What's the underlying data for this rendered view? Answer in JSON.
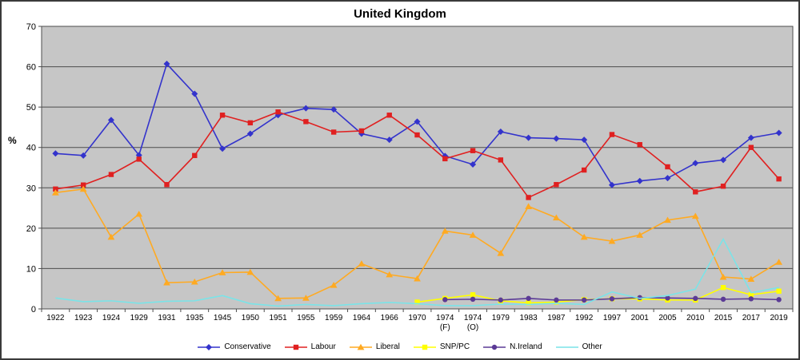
{
  "chart_data": {
    "type": "line",
    "title": "United Kingdom",
    "ylabel": "%",
    "ylim": [
      0,
      70
    ],
    "yticks": [
      0,
      10,
      20,
      30,
      40,
      50,
      60,
      70
    ],
    "grid": true,
    "legend_position": "bottom",
    "plot_bg": "#C6C6C6",
    "grid_color": "#4D4D4D",
    "categories": [
      "1922",
      "1923",
      "1924",
      "1929",
      "1931",
      "1935",
      "1945",
      "1950",
      "1951",
      "1955",
      "1959",
      "1964",
      "1966",
      "1970",
      "1974 (F)",
      "1974 (O)",
      "1979",
      "1983",
      "1987",
      "1992",
      "1997",
      "2001",
      "2005",
      "2010",
      "2015",
      "2017",
      "2019"
    ],
    "series": [
      {
        "name": "Conservative",
        "color": "#3333CC",
        "marker": "diamond",
        "values": [
          38.5,
          38.0,
          46.8,
          38.1,
          60.7,
          53.3,
          39.7,
          43.4,
          48.0,
          49.7,
          49.4,
          43.4,
          41.9,
          46.4,
          37.9,
          35.8,
          43.9,
          42.4,
          42.2,
          41.9,
          30.7,
          31.7,
          32.4,
          36.1,
          36.9,
          42.4,
          43.6
        ]
      },
      {
        "name": "Labour",
        "color": "#E02020",
        "marker": "square",
        "values": [
          29.7,
          30.7,
          33.3,
          37.1,
          30.8,
          38.0,
          48.0,
          46.1,
          48.8,
          46.4,
          43.8,
          44.1,
          48.0,
          43.1,
          37.2,
          39.2,
          36.9,
          27.6,
          30.8,
          34.4,
          43.2,
          40.7,
          35.2,
          29.0,
          30.4,
          40.0,
          32.2
        ]
      },
      {
        "name": "Liberal",
        "color": "#FFAA22",
        "marker": "triangle",
        "values": [
          28.8,
          29.7,
          17.8,
          23.5,
          6.5,
          6.7,
          9.0,
          9.1,
          2.6,
          2.7,
          5.9,
          11.2,
          8.5,
          7.5,
          19.3,
          18.3,
          13.8,
          25.4,
          22.6,
          17.8,
          16.8,
          18.3,
          22.0,
          23.0,
          7.9,
          7.4,
          11.6
        ]
      },
      {
        "name": "SNP/PC",
        "color": "#FFFF00",
        "marker": "square",
        "values": [
          null,
          null,
          null,
          null,
          null,
          null,
          null,
          null,
          null,
          null,
          null,
          null,
          null,
          1.7,
          2.6,
          3.5,
          2.0,
          1.5,
          1.7,
          2.3,
          2.5,
          2.5,
          2.2,
          2.2,
          5.3,
          3.5,
          4.4
        ]
      },
      {
        "name": "N.Ireland",
        "color": "#5B3A96",
        "marker": "circle",
        "values": [
          null,
          null,
          null,
          null,
          null,
          null,
          null,
          null,
          null,
          null,
          null,
          null,
          null,
          null,
          2.3,
          2.4,
          2.2,
          2.6,
          2.2,
          2.2,
          2.5,
          2.8,
          2.7,
          2.6,
          2.4,
          2.5,
          2.3
        ]
      },
      {
        "name": "Other",
        "color": "#7AE4E8",
        "marker": "none",
        "values": [
          2.7,
          1.8,
          2.0,
          1.4,
          1.9,
          2.0,
          3.3,
          1.3,
          0.7,
          1.1,
          0.8,
          1.3,
          1.6,
          1.3,
          0.8,
          0.8,
          1.2,
          1.1,
          1.4,
          1.1,
          4.2,
          2.6,
          3.3,
          4.9,
          17.3,
          4.0,
          5.3
        ]
      }
    ]
  }
}
